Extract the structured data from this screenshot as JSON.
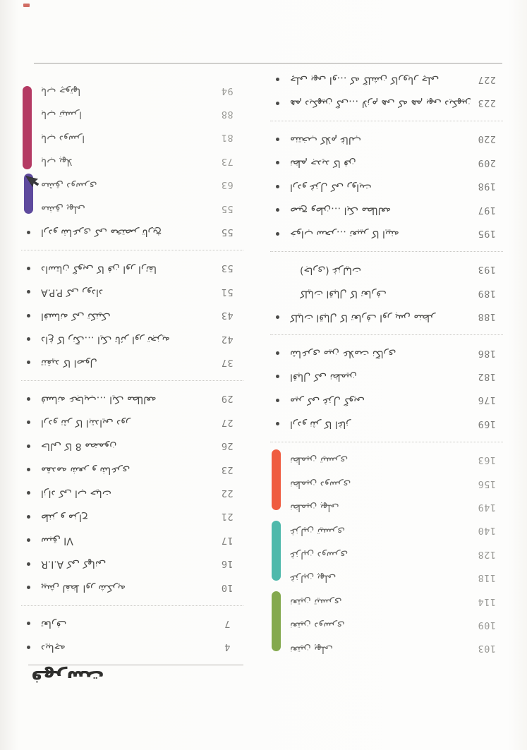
{
  "page": {
    "title": "فهرست"
  },
  "colors": {
    "pink": "#b43a63",
    "purple": "#5e4a9d",
    "orange": "#ef5c40",
    "teal": "#4eb9ab",
    "green": "#84a94e",
    "text": "#474744",
    "number": "#7c7c79"
  },
  "section_bars": [
    {
      "id": "pink",
      "color": "#b43a63"
    },
    {
      "id": "purple",
      "color": "#5e4a9d"
    },
    {
      "id": "orange",
      "color": "#ef5c40"
    },
    {
      "id": "teal",
      "color": "#4eb9ab"
    },
    {
      "id": "green",
      "color": "#84a94e"
    }
  ],
  "cursor": {
    "visible": true,
    "color": "#3a3a3e"
  },
  "left_column": {
    "items": [
      {
        "text": "باب چوتها",
        "num": "94",
        "bullet": false,
        "muted": true
      },
      {
        "text": "باب تیسرا",
        "num": "88",
        "bullet": false,
        "muted": true
      },
      {
        "text": "باب دوسرا",
        "num": "81",
        "bullet": false,
        "muted": true
      },
      {
        "text": "باب پهلا",
        "num": "73",
        "bullet": false,
        "muted": true
      },
      {
        "text": "مشق دوسری",
        "num": "63",
        "bullet": false,
        "muted": true
      },
      {
        "text": "مشق پهلی",
        "num": "55",
        "bullet": false,
        "muted": true
      },
      {
        "text": "اردو شاعری کی مختصر تاریخ",
        "num": "55",
        "bullet": true
      },
      {
        "type": "separator"
      },
      {
        "text": "داستان گویی کا فن اور ارتقا",
        "num": "53",
        "bullet": true
      },
      {
        "text": "P.P.A کی روداد",
        "num": "51",
        "bullet": true
      },
      {
        "text": "افسانه کی تکنیک",
        "num": "43",
        "bullet": true
      },
      {
        "text": "داغ کا رنگ… ایک تاثر اور تجزیه",
        "num": "42",
        "bullet": true
      },
      {
        "text": "تنقید کا اصول",
        "num": "37",
        "bullet": true
      },
      {
        "type": "separator"
      },
      {
        "text": "فسانه عجایب… ایک مطالعه",
        "num": "29",
        "bullet": true
      },
      {
        "text": "اردو نثر کا ابتدایی دور",
        "num": "27",
        "bullet": true
      },
      {
        "text": "حالی کا 8 مضمون",
        "num": "26",
        "bullet": true
      },
      {
        "text": "مقدمه شعر و شاعری",
        "num": "23",
        "bullet": true
      },
      {
        "text": "آزاد کی آب حیات",
        "num": "22",
        "bullet": true
      },
      {
        "text": "طنز و مزاح",
        "num": "21",
        "bullet": true
      },
      {
        "text": "سبق VI",
        "num": "17",
        "bullet": true
      },
      {
        "text": "A.I.R کی کهانی",
        "num": "16",
        "bullet": true
      },
      {
        "text": "پیش لفظ اور شکریه",
        "num": "10",
        "bullet": true
      },
      {
        "type": "separator"
      },
      {
        "text": "تعارف",
        "num": "7",
        "bullet": true
      },
      {
        "text": "دیباچه",
        "num": "4",
        "bullet": true
      }
    ]
  },
  "right_column": {
    "items": [
      {
        "text": "چلی بهی آو… که گلشن کاروبار چلی",
        "num": "227",
        "bullet": true
      },
      {
        "text": "هم دیکهین گی… لازم هی که هم بهی دیکهین",
        "num": "223",
        "bullet": true
      },
      {
        "type": "separator"
      },
      {
        "text": "منتخب کلام غالب",
        "num": "220",
        "bullet": true
      },
      {
        "text": "نظم جدید کا فن",
        "num": "209",
        "bullet": true
      },
      {
        "text": "اردو غزل کی روایت",
        "num": "198",
        "bullet": true
      },
      {
        "text": "صبح وطن… ایک مطالعه",
        "num": "197",
        "bullet": true
      },
      {
        "text": "خواب سحر… تعبیر کا آیینه",
        "num": "195",
        "bullet": true
      },
      {
        "type": "separator"
      },
      {
        "text": "(جاری) غزلیات",
        "num": "193",
        "bullet": false,
        "indent": true
      },
      {
        "text": "کلیات اقبال کا تعارف",
        "num": "189",
        "bullet": false,
        "indent": true
      },
      {
        "text": "کلیات اقبال کا تعارف اور پس منظر",
        "num": "188",
        "bullet": true
      },
      {
        "type": "separator"
      },
      {
        "text": "شاعری مین علامت نگاری",
        "num": "186",
        "bullet": true
      },
      {
        "text": "اقبال کی نظمین",
        "num": "182",
        "bullet": true
      },
      {
        "text": "میر کی غزل گویی",
        "num": "176",
        "bullet": true
      },
      {
        "text": "اردو نثر کا آغاز",
        "num": "169",
        "bullet": true
      },
      {
        "type": "separator"
      },
      {
        "text": "نظمین تیسری",
        "num": "163",
        "bullet": false,
        "muted": true
      },
      {
        "text": "نظمین دوسری",
        "num": "156",
        "bullet": false,
        "muted": true
      },
      {
        "text": "نظمین پهلی",
        "num": "149",
        "bullet": false,
        "muted": true
      },
      {
        "text": "غزلین تیسری",
        "num": "140",
        "bullet": false,
        "muted": true
      },
      {
        "text": "غزلین دوسری",
        "num": "128",
        "bullet": false,
        "muted": true
      },
      {
        "text": "غزلین پهلی",
        "num": "118",
        "bullet": false,
        "muted": true
      },
      {
        "text": "نعتین تیسری",
        "num": "114",
        "bullet": false,
        "muted": true
      },
      {
        "text": "نعتین دوسری",
        "num": "109",
        "bullet": false,
        "muted": true
      },
      {
        "text": "نعتین پهلی",
        "num": "103",
        "bullet": false,
        "muted": true
      }
    ]
  }
}
